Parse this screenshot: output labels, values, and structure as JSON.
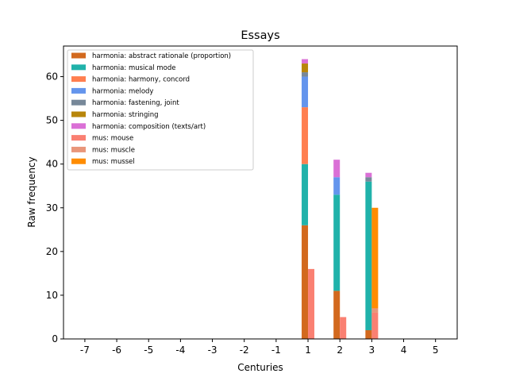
{
  "chart_data": {
    "type": "bar",
    "title": "Essays",
    "xlabel": "Centuries",
    "ylabel": "Raw frequency",
    "x_ticks": [
      "-7",
      "-6",
      "-5",
      "-4",
      "-3",
      "-2",
      "-1",
      "1",
      "2",
      "3",
      "4",
      "5"
    ],
    "y_ticks": [
      "0",
      "10",
      "20",
      "30",
      "40",
      "50",
      "60"
    ],
    "ylim": [
      0,
      67
    ],
    "grid": false,
    "legend_position": "top-left",
    "stacks": [
      {
        "group": "harmonia",
        "offset": "left",
        "series": [
          {
            "name": "harmonia: abstract rationale (proportion)",
            "color": "#d2691e",
            "values": {
              "1": 26,
              "2": 11,
              "3": 2
            }
          },
          {
            "name": "harmonia: musical mode",
            "color": "#20b2aa",
            "values": {
              "1": 14,
              "2": 22,
              "3": 34
            }
          },
          {
            "name": "harmonia: harmony, concord",
            "color": "#ff7f50",
            "values": {
              "1": 13,
              "2": 0,
              "3": 0
            }
          },
          {
            "name": "harmonia: melody",
            "color": "#6495ed",
            "values": {
              "1": 7,
              "2": 4,
              "3": 0
            }
          },
          {
            "name": "harmonia: fastening, joint",
            "color": "#778899",
            "values": {
              "1": 1,
              "2": 0,
              "3": 1
            }
          },
          {
            "name": "harmonia: stringing",
            "color": "#b8860b",
            "values": {
              "1": 2,
              "2": 0,
              "3": 0
            }
          },
          {
            "name": "harmonia: composition (texts/art)",
            "color": "#da70d6",
            "values": {
              "1": 1,
              "2": 4,
              "3": 1
            }
          }
        ]
      },
      {
        "group": "mus",
        "offset": "right",
        "series": [
          {
            "name": "mus: mouse",
            "color": "#fa8072",
            "values": {
              "1": 16,
              "2": 5,
              "3": 6
            }
          },
          {
            "name": "mus: muscle",
            "color": "#e9967a",
            "values": {
              "1": 0,
              "2": 0,
              "3": 1
            }
          },
          {
            "name": "mus: mussel",
            "color": "#ff8c00",
            "values": {
              "1": 0,
              "2": 0,
              "3": 23
            }
          }
        ]
      }
    ]
  }
}
